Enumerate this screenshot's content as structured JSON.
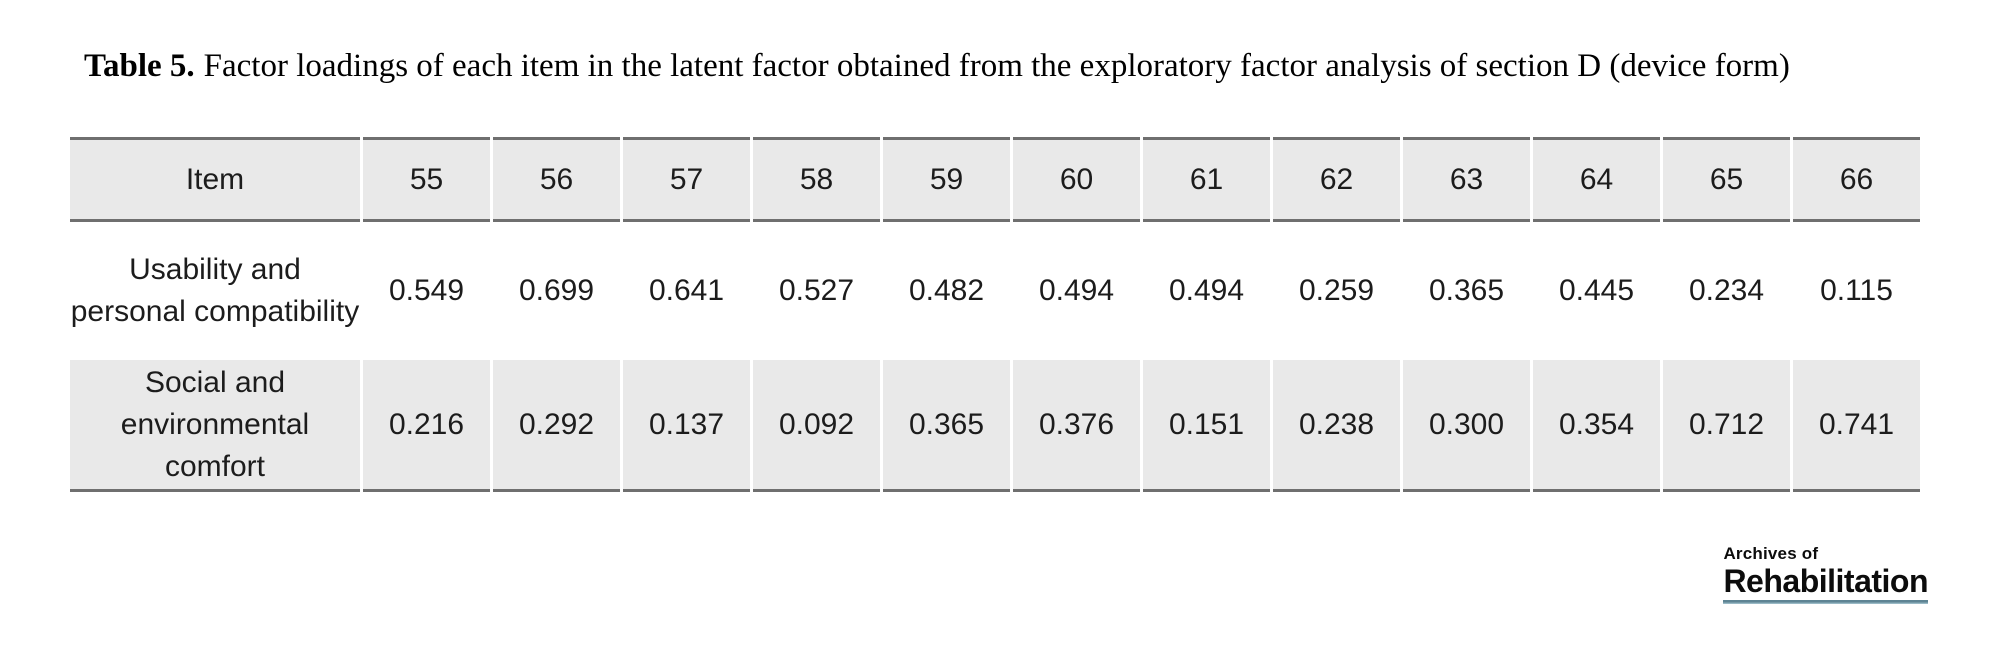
{
  "caption": {
    "label": "Table 5.",
    "text": "Factor loadings of each item in the latent factor obtained from the exploratory factor analysis of section D (device form)"
  },
  "table": {
    "header": [
      "Item",
      "55",
      "56",
      "57",
      "58",
      "59",
      "60",
      "61",
      "62",
      "63",
      "64",
      "65",
      "66"
    ],
    "rows": [
      {
        "item": "Usability and personal compatibility",
        "values": [
          "0.549",
          "0.699",
          "0.641",
          "0.527",
          "0.482",
          "0.494",
          "0.494",
          "0.259",
          "0.365",
          "0.445",
          "0.234",
          "0.115"
        ]
      },
      {
        "item": "Social and environmental comfort",
        "values": [
          "0.216",
          "0.292",
          "0.137",
          "0.092",
          "0.365",
          "0.376",
          "0.151",
          "0.238",
          "0.300",
          "0.354",
          "0.712",
          "0.741"
        ]
      }
    ]
  },
  "logo": {
    "line1": "Archives of",
    "line2": "Rehabilitation"
  },
  "colors": {
    "row_shade": "#e9e9e9",
    "rule": "#6f6f6f",
    "logo_underline_top": "#5e8494",
    "logo_underline_bottom": "#aac9d3"
  }
}
